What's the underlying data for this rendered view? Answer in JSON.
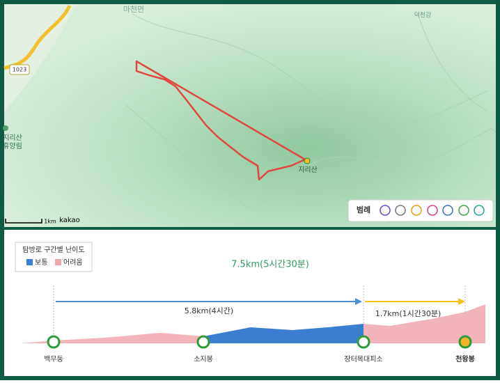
{
  "map": {
    "place_labels": [
      "마천면",
      "덕천강",
      "지리산\n휴양림",
      "지리산"
    ],
    "road_label": "1023",
    "scale": "1km",
    "provider": "kakao",
    "legend_title": "범례"
  },
  "profile": {
    "legend": {
      "title": "탐방로 구간별 난이도",
      "items": [
        "보통",
        "어려움"
      ]
    },
    "total": "7.5km(5시간30분)",
    "segments": [
      "5.8km(4시간)",
      "1.7km(1시간30분)"
    ],
    "stations": [
      "백무동",
      "소지봉",
      "장터목대피소",
      "천왕봉"
    ]
  }
}
